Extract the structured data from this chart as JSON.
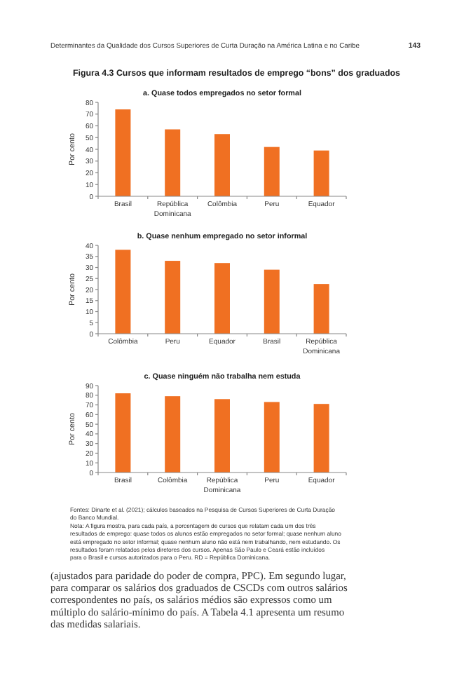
{
  "chart_data": [
    {
      "type": "bar",
      "title": "Figura 4.3  Cursos que informam resultados de emprego “bons” dos graduados",
      "subtitle": "a. Quase todos empregados no setor formal",
      "ylabel": "Por cento",
      "categories": [
        "Brasil",
        "República Dominicana",
        "Colômbia",
        "Peru",
        "Equador"
      ],
      "values": [
        74,
        57,
        53,
        42,
        39
      ],
      "color": "#f07022",
      "ylim": [
        0,
        80
      ],
      "yticks": [
        0,
        10,
        20,
        30,
        40,
        50,
        60,
        70,
        80
      ],
      "grid": false,
      "annotations": [
        "Determinantes da Qualidade dos Cursos Superiores de Curta Duração na América Latina e no Caribe",
        "143"
      ]
    },
    {
      "type": "bar",
      "title": "b. Quase nenhum empregado no setor informal",
      "ylabel": "Por cento",
      "categories": [
        "Colômbia",
        "Peru",
        "Equador",
        "Brasil",
        "República Dominicana"
      ],
      "values": [
        38,
        33,
        32,
        29,
        22.5
      ],
      "color": "#f07022",
      "ylim": [
        0,
        40
      ],
      "yticks": [
        0,
        5,
        10,
        15,
        20,
        25,
        30,
        35,
        40
      ],
      "grid": false
    },
    {
      "type": "bar",
      "title": "c. Quase ninguém não trabalha nem estuda",
      "ylabel": "Por cento",
      "categories": [
        "Brasil",
        "Colômbia",
        "República Dominicana",
        "Peru",
        "Equador"
      ],
      "values": [
        82,
        79,
        76,
        73,
        71
      ],
      "color": "#f07022",
      "ylim": [
        0,
        90
      ],
      "yticks": [
        0,
        10,
        20,
        30,
        40,
        50,
        60,
        70,
        80,
        90
      ],
      "grid": false,
      "annotations": [
        "Fontes: Dinarte et al. (2021); cálculos baseados na Pesquisa de Cursos Superiores de Curta Duração do Banco Mundial.",
        "Nota: A figura mostra, para cada país, a porcentagem de cursos que relatam cada um dos três resultados de emprego: quase todos os alunos estão empregados no setor formal; quase nenhum aluno está empregado no setor informal; quase nenhum aluno não está nem trabalhando, nem estudando. Os resultados foram relatados pelos diretores dos cursos. Apenas São Paulo e Ceará estão incluídos para o Brasil e cursos autorizados para o Peru. RD = República Dominicana.",
        "(ajustados para paridade do poder de compra, PPC). Em segundo lugar, para comparar os salários dos graduados de CSCDs com outros salários correspondentes no país, os salários médios são expressos como um múltiplo do salário-mínimo do país. A Tabela 4.1 apresenta um resumo das medidas salariais."
      ]
    }
  ]
}
